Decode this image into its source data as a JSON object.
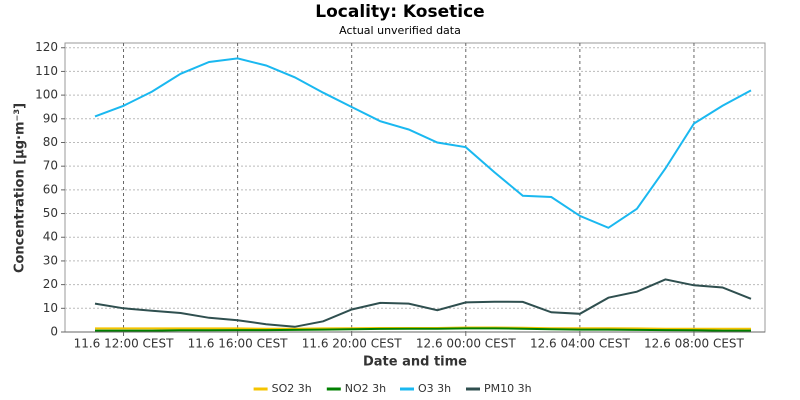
{
  "chart_data": {
    "type": "line",
    "title": "Locality: Kosetice",
    "subtitle": "Actual unverified data",
    "x_label": "Date and time",
    "y_label": "Concentration [µg·m⁻³]",
    "categories": [
      null,
      "11.6 12:00 CEST",
      null,
      null,
      null,
      "11.6 16:00 CEST",
      null,
      null,
      null,
      "11.6 20:00 CEST",
      null,
      null,
      null,
      "12.6 00:00 CEST",
      null,
      null,
      null,
      "12.6 04:00 CEST",
      null,
      null,
      null,
      "12.6 08:00 CEST",
      null,
      null
    ],
    "ylim": [
      0,
      122
    ],
    "yticks": [
      0,
      10,
      20,
      30,
      40,
      50,
      60,
      70,
      80,
      90,
      100,
      110,
      120
    ],
    "grid": true,
    "legend": "bottom",
    "series": [
      {
        "name": "SO2 3h",
        "color": "#f5c400",
        "values": [
          1.5,
          1.5,
          1.5,
          1.5,
          1.5,
          1.5,
          1.4,
          1.4,
          1.5,
          1.6,
          1.7,
          1.7,
          1.7,
          1.9,
          1.9,
          1.8,
          1.6,
          1.6,
          1.6,
          1.5,
          1.4,
          1.4,
          1.4,
          1.4
        ]
      },
      {
        "name": "NO2 3h",
        "color": "#008000",
        "values": [
          0.6,
          0.6,
          0.6,
          0.7,
          0.7,
          0.8,
          0.8,
          0.9,
          1,
          1.2,
          1.3,
          1.4,
          1.4,
          1.5,
          1.5,
          1.4,
          1.2,
          1,
          1,
          0.9,
          0.8,
          0.7,
          0.6,
          0.6
        ]
      },
      {
        "name": "O3 3h",
        "color": "#1ab8f0",
        "values": [
          91,
          95.5,
          101.5,
          109,
          114,
          115.5,
          112.5,
          107.5,
          101,
          95,
          89,
          85.5,
          80,
          78,
          67.5,
          57.5,
          57,
          49,
          44,
          52,
          69,
          88,
          95.5,
          102
        ]
      },
      {
        "name": "PM10 3h",
        "color": "#2f4f4f",
        "values": [
          12,
          10,
          9,
          8,
          6,
          5,
          3.3,
          2.2,
          4.5,
          9.5,
          12.3,
          12,
          9.2,
          12.5,
          12.8,
          12.7,
          8.3,
          7.7,
          14.5,
          17,
          22.2,
          19.7,
          18.8,
          14
        ]
      }
    ]
  }
}
